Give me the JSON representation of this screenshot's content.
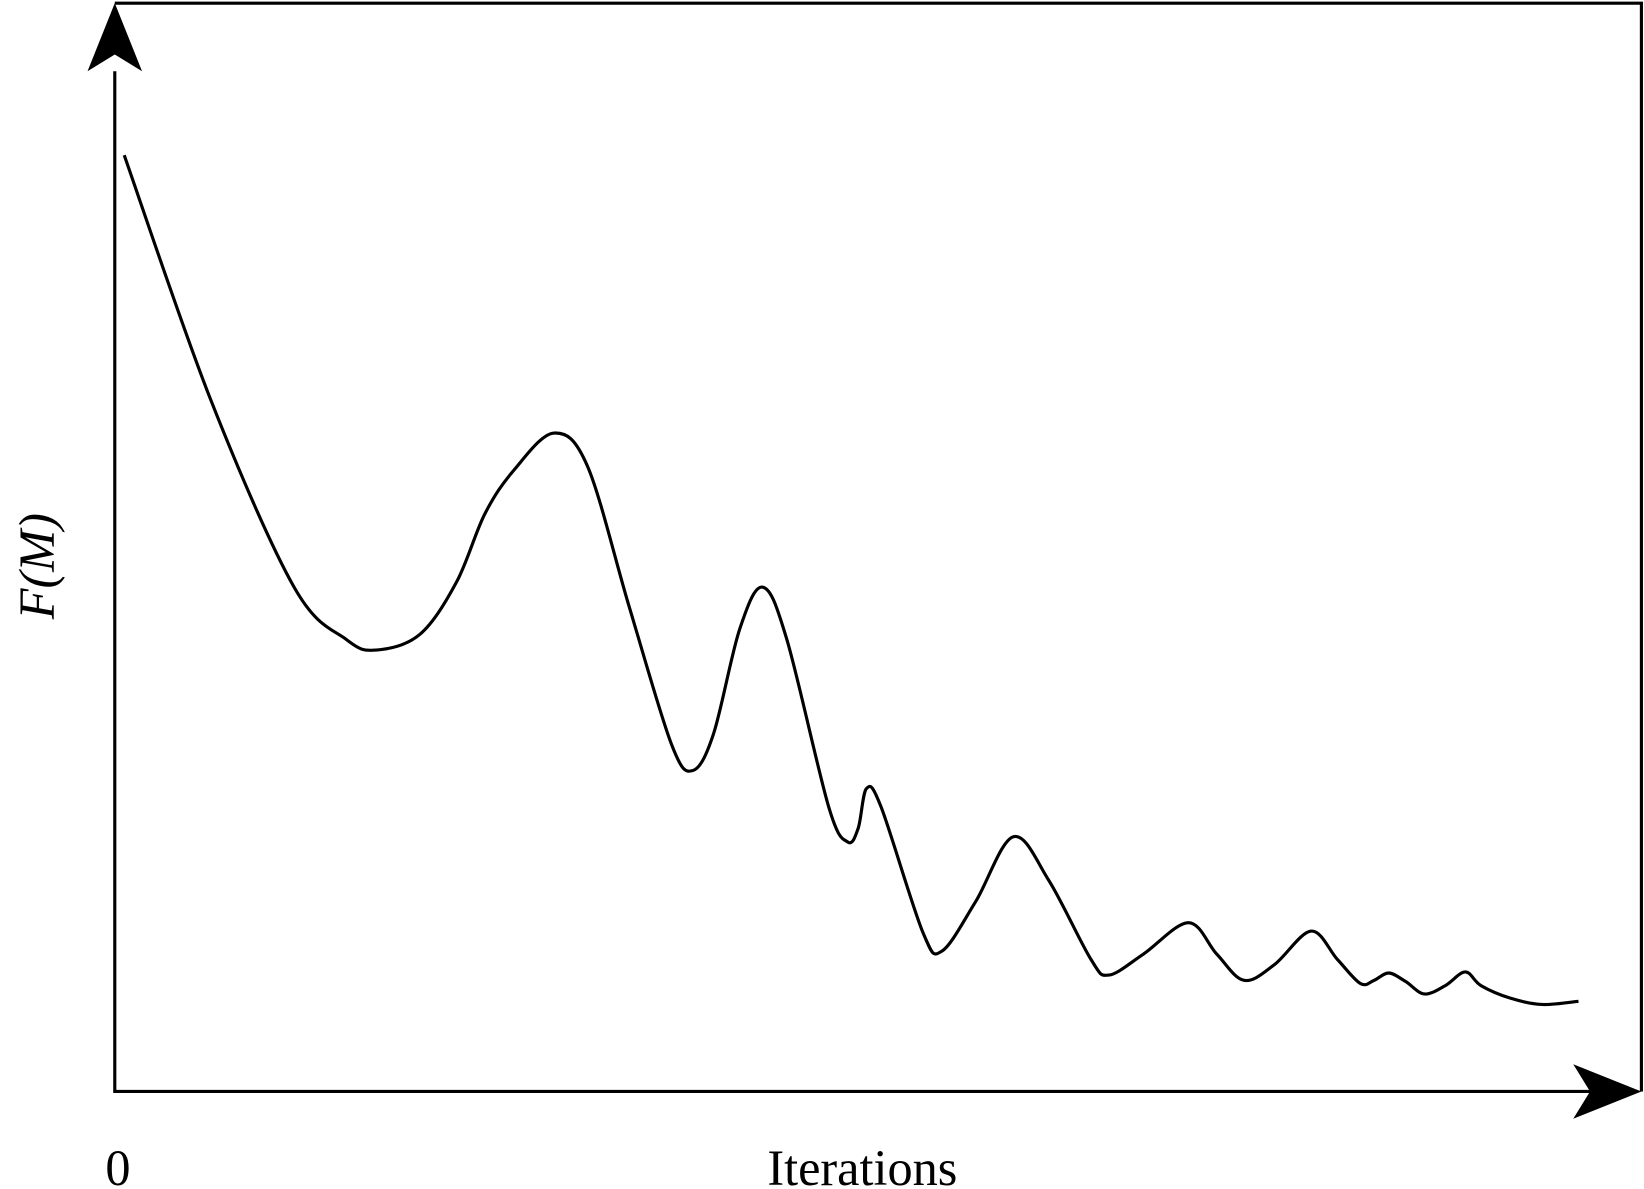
{
  "y_axis_label": "F(M)",
  "x_axis_label": "Iterations",
  "origin_label": "0"
}
